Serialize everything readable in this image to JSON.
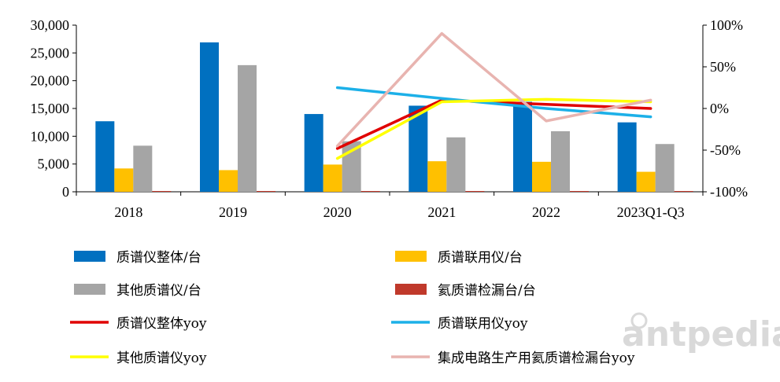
{
  "chart_data": {
    "type": "bar",
    "title": "",
    "categories": [
      "2018",
      "2019",
      "2020",
      "2021",
      "2022",
      "2023Q1-Q3"
    ],
    "y_left": {
      "ylim": [
        0,
        30000
      ],
      "ticks": [
        "0",
        "5,000",
        "10,000",
        "15,000",
        "20,000",
        "25,000",
        "30,000"
      ],
      "tick_values": [
        0,
        5000,
        10000,
        15000,
        20000,
        25000,
        30000
      ]
    },
    "y_right": {
      "ylim": [
        -100,
        100
      ],
      "ticks": [
        "-100%",
        "-50%",
        "0%",
        "50%",
        "100%"
      ],
      "tick_values": [
        -100,
        -50,
        0,
        50,
        100
      ]
    },
    "bar_series": [
      {
        "name": "质谱仪整体/台",
        "color": "#0070C0",
        "values": [
          12700,
          26900,
          14000,
          15500,
          16200,
          12500
        ]
      },
      {
        "name": "质谱联用仪/台",
        "color": "#FFC000",
        "values": [
          4200,
          3900,
          4900,
          5500,
          5400,
          3600
        ]
      },
      {
        "name": "其他质谱仪/台",
        "color": "#A5A5A5",
        "values": [
          8300,
          22800,
          9100,
          9800,
          10900,
          8600
        ]
      },
      {
        "name": "氦质谱检漏台/台",
        "color": "#C0392B",
        "values": [
          60,
          60,
          60,
          60,
          60,
          60
        ]
      }
    ],
    "line_series": [
      {
        "name": "质谱仪整体yoy",
        "color": "#E00000",
        "start_index": 2,
        "values": [
          -48,
          10,
          5,
          0
        ]
      },
      {
        "name": "质谱联用仪yoy",
        "color": "#1CB0E8",
        "start_index": 2,
        "values": [
          25,
          12,
          0,
          -10
        ]
      },
      {
        "name": "其他质谱仪yoy",
        "color": "#FFFF00",
        "start_index": 2,
        "values": [
          -60,
          8,
          11,
          8
        ]
      },
      {
        "name": "集成电路生产用氦质谱检漏台yoy",
        "color": "#E8B4B0",
        "start_index": 2,
        "values": [
          -45,
          90,
          -15,
          10
        ]
      }
    ],
    "legend_position": "bottom",
    "legend_order": [
      {
        "kind": "bar",
        "series": 0
      },
      {
        "kind": "bar",
        "series": 1
      },
      {
        "kind": "bar",
        "series": 2
      },
      {
        "kind": "bar",
        "series": 3
      },
      {
        "kind": "line",
        "series": 0
      },
      {
        "kind": "line",
        "series": 1
      },
      {
        "kind": "line",
        "series": 2
      },
      {
        "kind": "line",
        "series": 3
      }
    ]
  },
  "watermark": {
    "text": "antpedia"
  }
}
